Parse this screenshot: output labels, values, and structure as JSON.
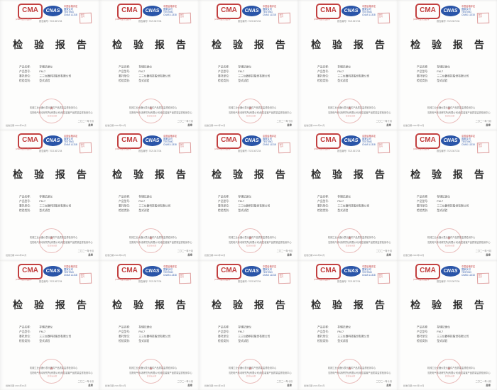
{
  "grid": {
    "cols": 5,
    "rows": 3,
    "tile_count": 15
  },
  "colors": {
    "cma_red": "#c24040",
    "cnas_blue": "#2a55a8",
    "stamp_red": "#c94d4d",
    "title_ink": "#2e2e2e",
    "paper": "#fdfdfc"
  },
  "page": {
    "cma": {
      "logo_text": "CMA",
      "cert_line": "(2004)量认(国)字"
    },
    "cnas": {
      "logo_text": "CNAS",
      "side_line1": "中国合格评定",
      "side_line2": "国家认可",
      "side_line3": "TESTING",
      "side_line4": "CNAS L1318"
    },
    "corner_seal": {
      "line1": "受控",
      "line2": "文件"
    },
    "report_no": "报告编号: 7021367234",
    "title": "检 验 报 告",
    "fields": [
      {
        "label": "产品名称:",
        "value": "存储记录仪"
      },
      {
        "label": "产品型号:",
        "value": "FM-7"
      },
      {
        "label": "委托单位:",
        "value": "三三仪器科技股份有限公司"
      },
      {
        "label": "检验类别:",
        "value": "型式试验"
      }
    ],
    "footer": {
      "center_line1": "机械工业仪器仪表元器件产品质量监督检测中心",
      "center_line2": "沈阳电气传动研究所(有限公司)电控装置产品质量监督检测中心",
      "stamp_star": "★",
      "stamp_text": "检测专用章",
      "date_line": "二〇二一年十月",
      "seal_label": "盖章",
      "approve_line": "批准日期:2021年10月"
    }
  }
}
